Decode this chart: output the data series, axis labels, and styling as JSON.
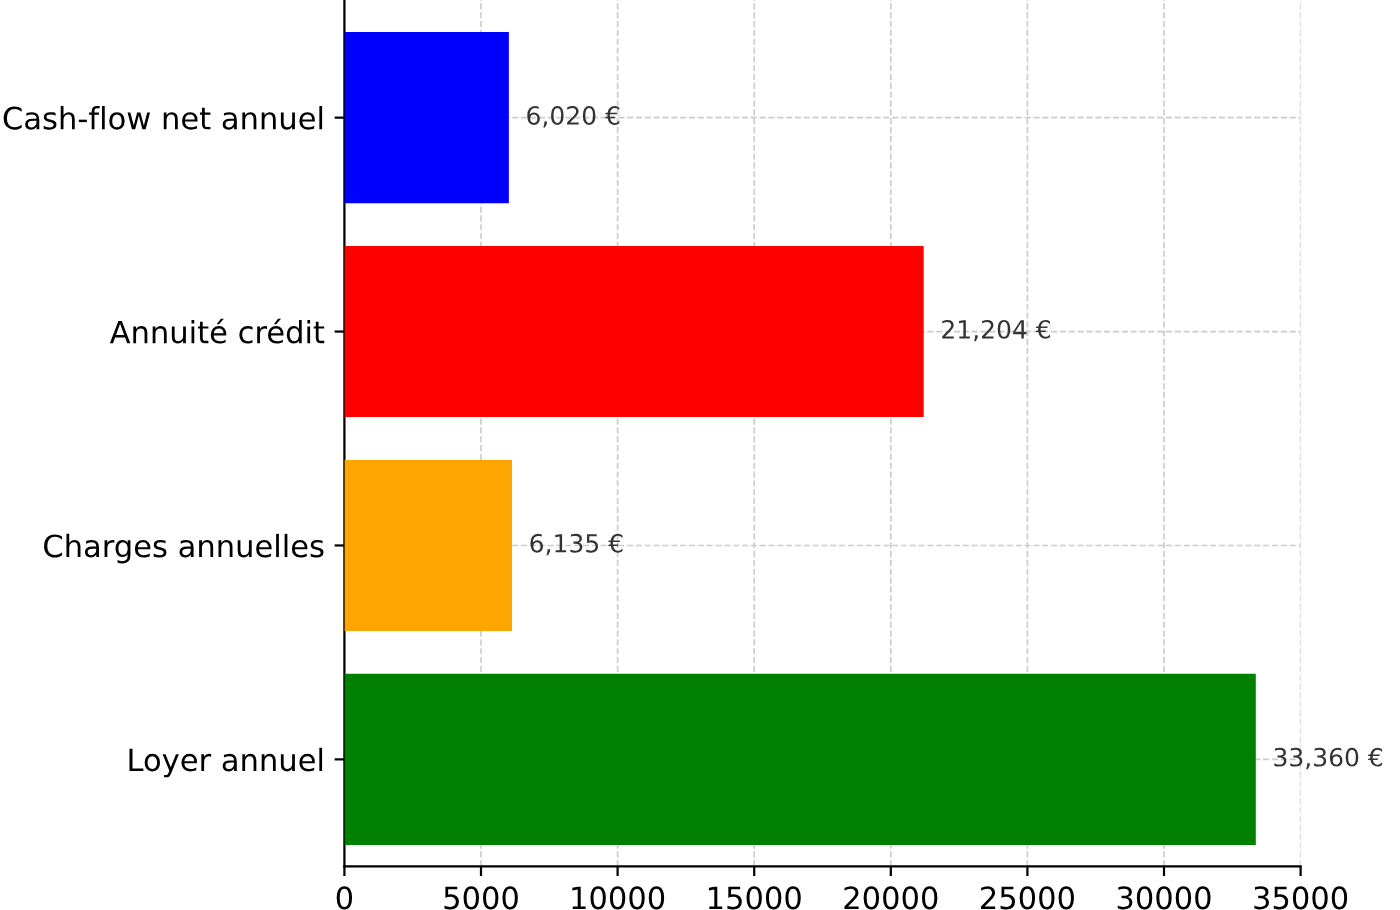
{
  "chart_data": {
    "type": "bar",
    "orientation": "horizontal",
    "categories": [
      "Cash-flow net annuel",
      "Annuité crédit",
      "Charges annuelles",
      "Loyer annuel"
    ],
    "values": [
      6020,
      21204,
      6135,
      33360
    ],
    "colors": [
      "#0000ff",
      "#ff0000",
      "#ffa500",
      "#008000"
    ],
    "value_labels": [
      "6,020 €",
      "21,204 €",
      "6,135 €",
      "33,360 €"
    ],
    "xlim": [
      0,
      35000
    ],
    "xticks": [
      0,
      5000,
      10000,
      15000,
      20000,
      25000,
      30000,
      35000
    ],
    "grid": true
  }
}
